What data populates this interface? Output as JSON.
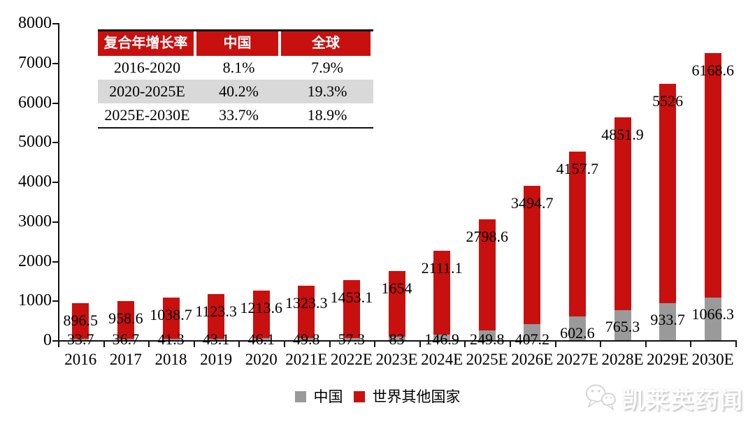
{
  "chart_data": {
    "type": "bar",
    "stacked": true,
    "title": "",
    "xlabel": "",
    "ylabel": "",
    "ylim": [
      0,
      8000
    ],
    "yticks": [
      0,
      1000,
      2000,
      3000,
      4000,
      5000,
      6000,
      7000,
      8000
    ],
    "grid": false,
    "legend_position": "bottom",
    "categories": [
      "2016",
      "2017",
      "2018",
      "2019",
      "2020",
      "2021E",
      "2022E",
      "2023E",
      "2024E",
      "2025E",
      "2026E",
      "2027E",
      "2028E",
      "2029E",
      "2030E"
    ],
    "series": [
      {
        "name": "中国",
        "color": "#9A9A9A",
        "values": [
          33.7,
          36.7,
          41.3,
          43.1,
          46.1,
          49.8,
          57.3,
          83,
          146.9,
          249.8,
          407.2,
          602.6,
          765.3,
          933.7,
          1066.3
        ]
      },
      {
        "name": "世界其他国家",
        "color": "#C8100F",
        "values": [
          896.5,
          958.6,
          1038.7,
          1123.3,
          1213.6,
          1323.3,
          1453.1,
          1654,
          2111.1,
          2798.6,
          3494.7,
          4157.7,
          4851.9,
          5526,
          6168.6
        ]
      }
    ]
  },
  "cagr_table": {
    "header_bg": "#C8100F",
    "alt_row_bg": "#D9D9D9",
    "headers": [
      "复合年增长率",
      "中国",
      "全球"
    ],
    "rows": [
      [
        "2016-2020",
        "8.1%",
        "7.9%"
      ],
      [
        "2020-2025E",
        "40.2%",
        "19.3%"
      ],
      [
        "2025E-2030E",
        "33.7%",
        "18.9%"
      ]
    ]
  },
  "legend": {
    "items": [
      {
        "label": "中国",
        "color": "#9A9A9A"
      },
      {
        "label": "世界其他国家",
        "color": "#C8100F"
      }
    ]
  },
  "watermark": {
    "text": "凯莱英药闻",
    "icon": "wechat-icon"
  }
}
